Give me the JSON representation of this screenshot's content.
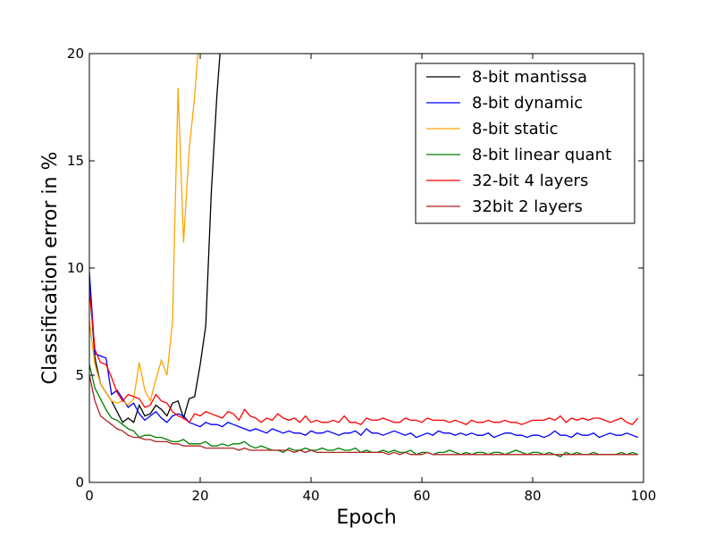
{
  "chart_data": {
    "type": "line",
    "title": "",
    "xlabel": "Epoch",
    "ylabel": "Classification error in %",
    "xlim": [
      0,
      100
    ],
    "ylim": [
      0,
      20
    ],
    "x_ticks": [
      0,
      20,
      40,
      60,
      80,
      100
    ],
    "y_ticks": [
      0,
      5,
      10,
      15,
      20
    ],
    "legend_position": "top-right",
    "grid": false,
    "series": [
      {
        "name": "8-bit mantissa",
        "color": "#000000",
        "x": [
          0,
          1,
          2,
          3,
          4,
          5,
          6,
          7,
          8,
          9,
          10,
          11,
          12,
          13,
          14,
          15,
          16,
          17,
          18,
          19,
          20,
          21,
          22,
          23,
          24
        ],
        "y": [
          9.3,
          5.8,
          4.6,
          4.2,
          3.8,
          3.3,
          2.8,
          3.0,
          2.8,
          3.6,
          3.1,
          3.2,
          3.6,
          3.4,
          3.1,
          3.7,
          3.8,
          3.0,
          3.9,
          4.0,
          5.5,
          7.3,
          13.5,
          18.0,
          21.5
        ]
      },
      {
        "name": "8-bit dynamic",
        "color": "#0000ff",
        "x": [
          0,
          1,
          2,
          3,
          4,
          5,
          6,
          7,
          8,
          9,
          10,
          11,
          12,
          13,
          14,
          15,
          16,
          17,
          18,
          19,
          20,
          21,
          22,
          23,
          24,
          25,
          26,
          27,
          28,
          29,
          30,
          31,
          32,
          33,
          34,
          35,
          36,
          37,
          38,
          39,
          40,
          41,
          42,
          43,
          44,
          45,
          46,
          47,
          48,
          49,
          50,
          51,
          52,
          53,
          54,
          55,
          56,
          57,
          58,
          59,
          60,
          61,
          62,
          63,
          64,
          65,
          66,
          67,
          68,
          69,
          70,
          71,
          72,
          73,
          74,
          75,
          76,
          77,
          78,
          79,
          80,
          81,
          82,
          83,
          84,
          85,
          86,
          87,
          88,
          89,
          90,
          91,
          92,
          93,
          94,
          95,
          96,
          97,
          98,
          99
        ],
        "y": [
          9.8,
          6.0,
          5.9,
          5.8,
          4.1,
          4.3,
          3.9,
          3.5,
          3.7,
          3.2,
          2.9,
          3.1,
          3.3,
          3.0,
          2.8,
          3.1,
          3.2,
          3.1,
          2.8,
          2.7,
          2.6,
          2.8,
          2.7,
          2.7,
          2.6,
          2.8,
          2.7,
          2.6,
          2.5,
          2.4,
          2.5,
          2.4,
          2.3,
          2.5,
          2.4,
          2.3,
          2.4,
          2.3,
          2.3,
          2.2,
          2.4,
          2.3,
          2.3,
          2.4,
          2.3,
          2.2,
          2.3,
          2.3,
          2.4,
          2.2,
          2.5,
          2.3,
          2.3,
          2.2,
          2.3,
          2.4,
          2.3,
          2.2,
          2.3,
          2.1,
          2.2,
          2.3,
          2.2,
          2.4,
          2.3,
          2.3,
          2.2,
          2.3,
          2.2,
          2.3,
          2.2,
          2.2,
          2.3,
          2.1,
          2.2,
          2.3,
          2.3,
          2.2,
          2.2,
          2.1,
          2.2,
          2.2,
          2.1,
          2.2,
          2.4,
          2.2,
          2.2,
          2.1,
          2.3,
          2.2,
          2.2,
          2.3,
          2.1,
          2.2,
          2.3,
          2.2,
          2.2,
          2.3,
          2.2,
          2.1
        ]
      },
      {
        "name": "8-bit static",
        "color": "#ffa500",
        "x": [
          0,
          1,
          2,
          3,
          4,
          5,
          6,
          7,
          8,
          9,
          10,
          11,
          12,
          13,
          14,
          15,
          16,
          17,
          18,
          19,
          20
        ],
        "y": [
          7.5,
          5.5,
          4.6,
          4.2,
          3.8,
          3.7,
          3.8,
          3.6,
          3.9,
          5.6,
          4.3,
          3.8,
          4.8,
          5.7,
          5.0,
          7.5,
          18.4,
          11.2,
          15.5,
          18.0,
          21.5
        ]
      },
      {
        "name": "8-bit linear quant",
        "color": "#008000",
        "x": [
          0,
          1,
          2,
          3,
          4,
          5,
          6,
          7,
          8,
          9,
          10,
          11,
          12,
          13,
          14,
          15,
          16,
          17,
          18,
          19,
          20,
          21,
          22,
          23,
          24,
          25,
          26,
          27,
          28,
          29,
          30,
          31,
          32,
          33,
          34,
          35,
          36,
          37,
          38,
          39,
          40,
          41,
          42,
          43,
          44,
          45,
          46,
          47,
          48,
          49,
          50,
          51,
          52,
          53,
          54,
          55,
          56,
          57,
          58,
          59,
          60,
          61,
          62,
          63,
          64,
          65,
          66,
          67,
          68,
          69,
          70,
          71,
          72,
          73,
          74,
          75,
          76,
          77,
          78,
          79,
          80,
          81,
          82,
          83,
          84,
          85,
          86,
          87,
          88,
          89,
          90,
          91,
          92,
          93,
          94,
          95,
          96,
          97,
          98,
          99
        ],
        "y": [
          5.5,
          4.4,
          3.9,
          3.4,
          3.0,
          2.9,
          2.7,
          2.5,
          2.4,
          2.1,
          2.2,
          2.2,
          2.1,
          2.1,
          2.0,
          1.9,
          1.9,
          2.0,
          1.8,
          1.8,
          1.8,
          1.9,
          1.7,
          1.7,
          1.8,
          1.7,
          1.8,
          1.8,
          1.9,
          1.7,
          1.6,
          1.7,
          1.6,
          1.5,
          1.5,
          1.4,
          1.6,
          1.5,
          1.5,
          1.6,
          1.5,
          1.5,
          1.6,
          1.5,
          1.5,
          1.6,
          1.5,
          1.5,
          1.6,
          1.4,
          1.5,
          1.4,
          1.4,
          1.5,
          1.4,
          1.5,
          1.4,
          1.4,
          1.5,
          1.3,
          1.4,
          1.4,
          1.3,
          1.4,
          1.4,
          1.5,
          1.4,
          1.3,
          1.4,
          1.3,
          1.4,
          1.4,
          1.3,
          1.4,
          1.4,
          1.3,
          1.4,
          1.5,
          1.4,
          1.3,
          1.4,
          1.4,
          1.3,
          1.4,
          1.3,
          1.2,
          1.4,
          1.3,
          1.4,
          1.3,
          1.3,
          1.4,
          1.3,
          1.3,
          1.3,
          1.3,
          1.4,
          1.3,
          1.4,
          1.3
        ]
      },
      {
        "name": "32-bit 4 layers",
        "color": "#ff0000",
        "x": [
          0,
          1,
          2,
          3,
          4,
          5,
          6,
          7,
          8,
          9,
          10,
          11,
          12,
          13,
          14,
          15,
          16,
          17,
          18,
          19,
          20,
          21,
          22,
          23,
          24,
          25,
          26,
          27,
          28,
          29,
          30,
          31,
          32,
          33,
          34,
          35,
          36,
          37,
          38,
          39,
          40,
          41,
          42,
          43,
          44,
          45,
          46,
          47,
          48,
          49,
          50,
          51,
          52,
          53,
          54,
          55,
          56,
          57,
          58,
          59,
          60,
          61,
          62,
          63,
          64,
          65,
          66,
          67,
          68,
          69,
          70,
          71,
          72,
          73,
          74,
          75,
          76,
          77,
          78,
          79,
          80,
          81,
          82,
          83,
          84,
          85,
          86,
          87,
          88,
          89,
          90,
          91,
          92,
          93,
          94,
          95,
          96,
          97,
          98,
          99
        ],
        "y": [
          9.0,
          6.2,
          5.6,
          5.5,
          4.9,
          4.2,
          3.8,
          4.1,
          4.0,
          3.9,
          3.5,
          3.6,
          4.1,
          3.8,
          3.7,
          3.3,
          3.1,
          3.0,
          2.8,
          3.2,
          3.1,
          3.3,
          3.2,
          3.1,
          3.0,
          3.3,
          3.2,
          2.9,
          3.4,
          3.1,
          3.0,
          2.8,
          3.0,
          2.9,
          3.2,
          3.0,
          2.9,
          3.0,
          2.8,
          3.1,
          2.8,
          2.9,
          2.8,
          2.8,
          2.9,
          2.8,
          3.1,
          2.8,
          2.8,
          2.7,
          3.0,
          2.9,
          2.9,
          3.0,
          2.9,
          2.8,
          2.8,
          3.0,
          2.9,
          2.9,
          2.8,
          3.0,
          2.9,
          2.9,
          2.9,
          2.8,
          2.9,
          2.8,
          2.7,
          2.9,
          2.8,
          2.8,
          2.9,
          2.8,
          2.8,
          2.9,
          2.8,
          2.8,
          2.7,
          2.8,
          2.9,
          2.9,
          2.9,
          3.0,
          2.9,
          3.1,
          2.8,
          3.0,
          2.9,
          3.0,
          2.9,
          3.0,
          3.0,
          2.9,
          2.8,
          2.9,
          3.0,
          2.8,
          2.7,
          3.0
        ]
      },
      {
        "name": "32bit 2 layers",
        "color": "#b22222",
        "x": [
          0,
          1,
          2,
          3,
          4,
          5,
          6,
          7,
          8,
          9,
          10,
          11,
          12,
          13,
          14,
          15,
          16,
          17,
          18,
          19,
          20,
          21,
          22,
          23,
          24,
          25,
          26,
          27,
          28,
          29,
          30,
          31,
          32,
          33,
          34,
          35,
          36,
          37,
          38,
          39,
          40,
          41,
          42,
          43,
          44,
          45,
          46,
          47,
          48,
          49,
          50,
          51,
          52,
          53,
          54,
          55,
          56,
          57,
          58,
          59,
          60,
          61,
          62,
          63,
          64,
          65,
          66,
          67,
          68,
          69,
          70,
          71,
          72,
          73,
          74,
          75,
          76,
          77,
          78,
          79,
          80,
          81,
          82,
          83,
          84,
          85,
          86,
          87,
          88,
          89,
          90,
          91,
          92,
          93,
          94,
          95,
          96,
          97,
          98,
          99
        ],
        "y": [
          5.0,
          3.8,
          3.1,
          2.9,
          2.7,
          2.5,
          2.4,
          2.2,
          2.1,
          2.1,
          2.0,
          2.0,
          1.9,
          1.9,
          1.9,
          1.8,
          1.8,
          1.7,
          1.7,
          1.7,
          1.7,
          1.6,
          1.6,
          1.6,
          1.6,
          1.6,
          1.6,
          1.5,
          1.6,
          1.5,
          1.5,
          1.5,
          1.5,
          1.5,
          1.5,
          1.5,
          1.5,
          1.4,
          1.5,
          1.4,
          1.5,
          1.4,
          1.4,
          1.4,
          1.4,
          1.4,
          1.4,
          1.4,
          1.4,
          1.4,
          1.4,
          1.4,
          1.4,
          1.4,
          1.3,
          1.4,
          1.3,
          1.4,
          1.3,
          1.3,
          1.3,
          1.4,
          1.3,
          1.3,
          1.3,
          1.3,
          1.3,
          1.3,
          1.3,
          1.3,
          1.3,
          1.3,
          1.3,
          1.3,
          1.3,
          1.3,
          1.3,
          1.3,
          1.3,
          1.3,
          1.3,
          1.3,
          1.3,
          1.3,
          1.3,
          1.3,
          1.3,
          1.3,
          1.3,
          1.3,
          1.3,
          1.3,
          1.3,
          1.3,
          1.3,
          1.3,
          1.3,
          1.3,
          1.3,
          1.3
        ]
      }
    ]
  }
}
